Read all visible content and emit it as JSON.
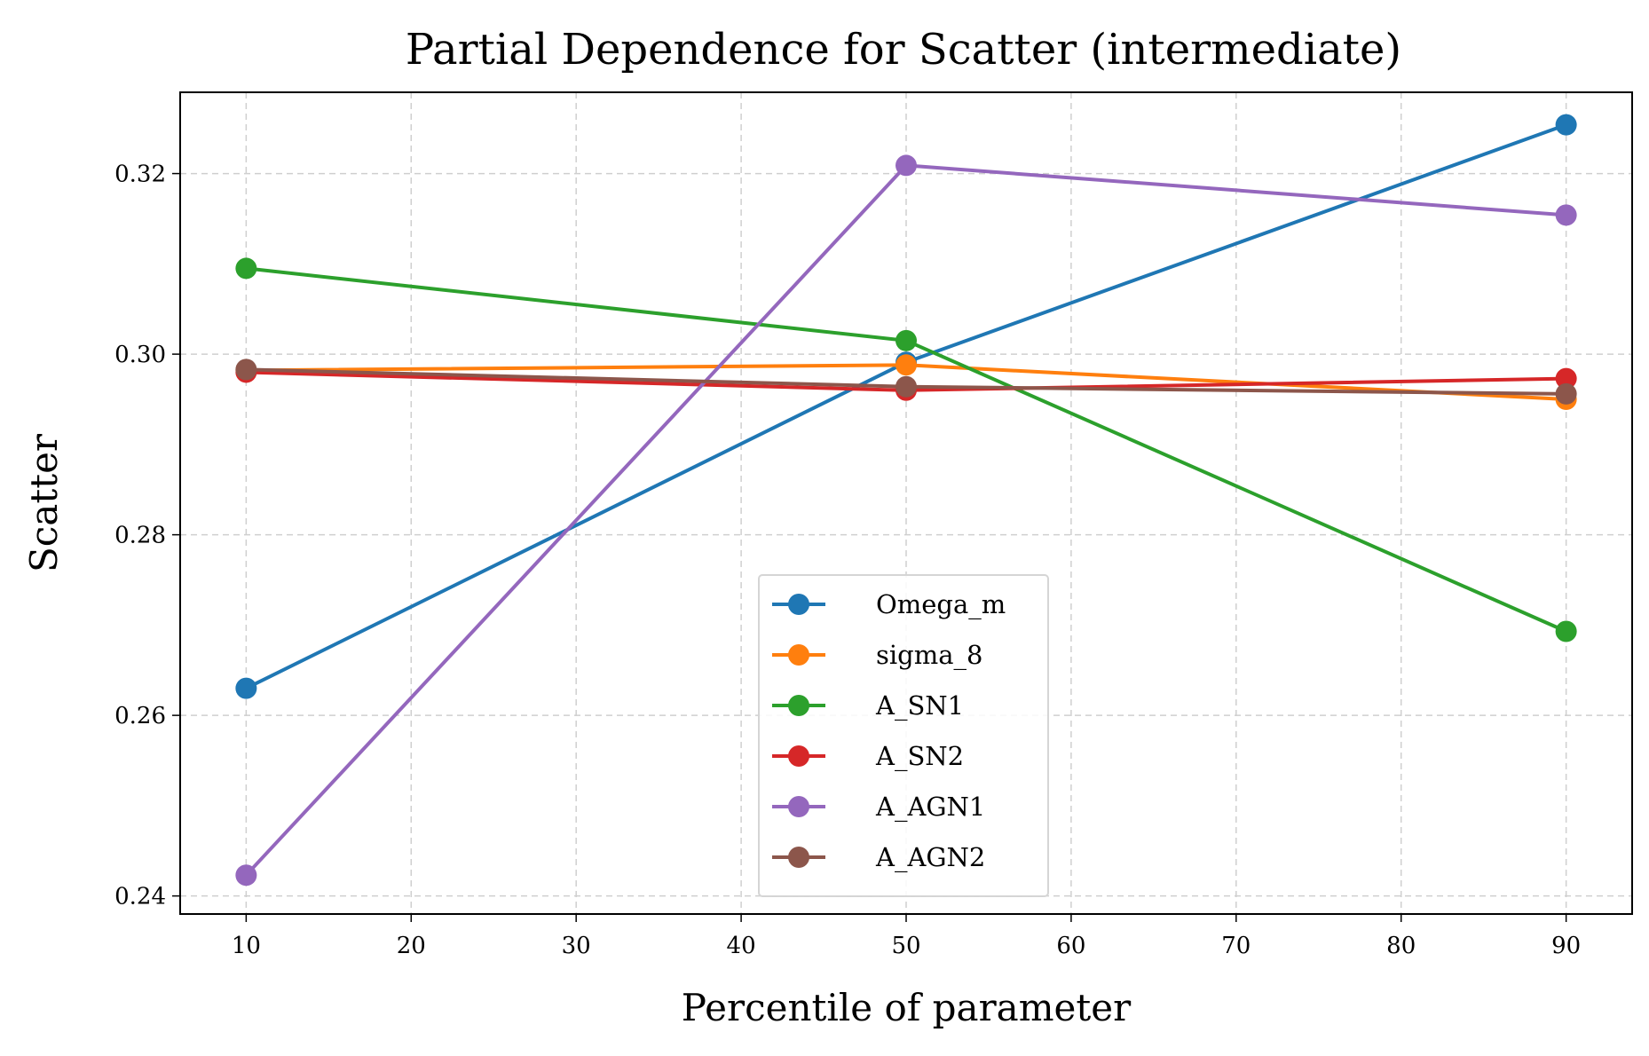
{
  "chart_data": {
    "type": "line",
    "title": "Partial Dependence for Scatter (intermediate)",
    "xlabel": "Percentile of parameter",
    "ylabel": "Scatter",
    "x": [
      10,
      50,
      90
    ],
    "xlim": [
      6,
      94
    ],
    "ylim": [
      0.238,
      0.329
    ],
    "xticks": [
      10,
      20,
      30,
      40,
      50,
      60,
      70,
      80,
      90
    ],
    "yticks": [
      0.24,
      0.26,
      0.28,
      0.3,
      0.32
    ],
    "ytick_labels": [
      "0.24",
      "0.26",
      "0.28",
      "0.30",
      "0.32"
    ],
    "grid": true,
    "legend_position": "lower-center",
    "series": [
      {
        "name": "Omega_m",
        "color": "#1f77b4",
        "values": [
          0.263,
          0.2991,
          0.3254
        ]
      },
      {
        "name": "sigma_8",
        "color": "#ff7f0e",
        "values": [
          0.2982,
          0.2988,
          0.295
        ]
      },
      {
        "name": "A_SN1",
        "color": "#2ca02c",
        "values": [
          0.3095,
          0.3015,
          0.2693
        ]
      },
      {
        "name": "A_SN2",
        "color": "#d62728",
        "values": [
          0.298,
          0.296,
          0.2973
        ]
      },
      {
        "name": "A_AGN1",
        "color": "#9467bd",
        "values": [
          0.2423,
          0.3209,
          0.3154
        ]
      },
      {
        "name": "A_AGN2",
        "color": "#8c564b",
        "values": [
          0.2983,
          0.2964,
          0.2956
        ]
      }
    ]
  }
}
